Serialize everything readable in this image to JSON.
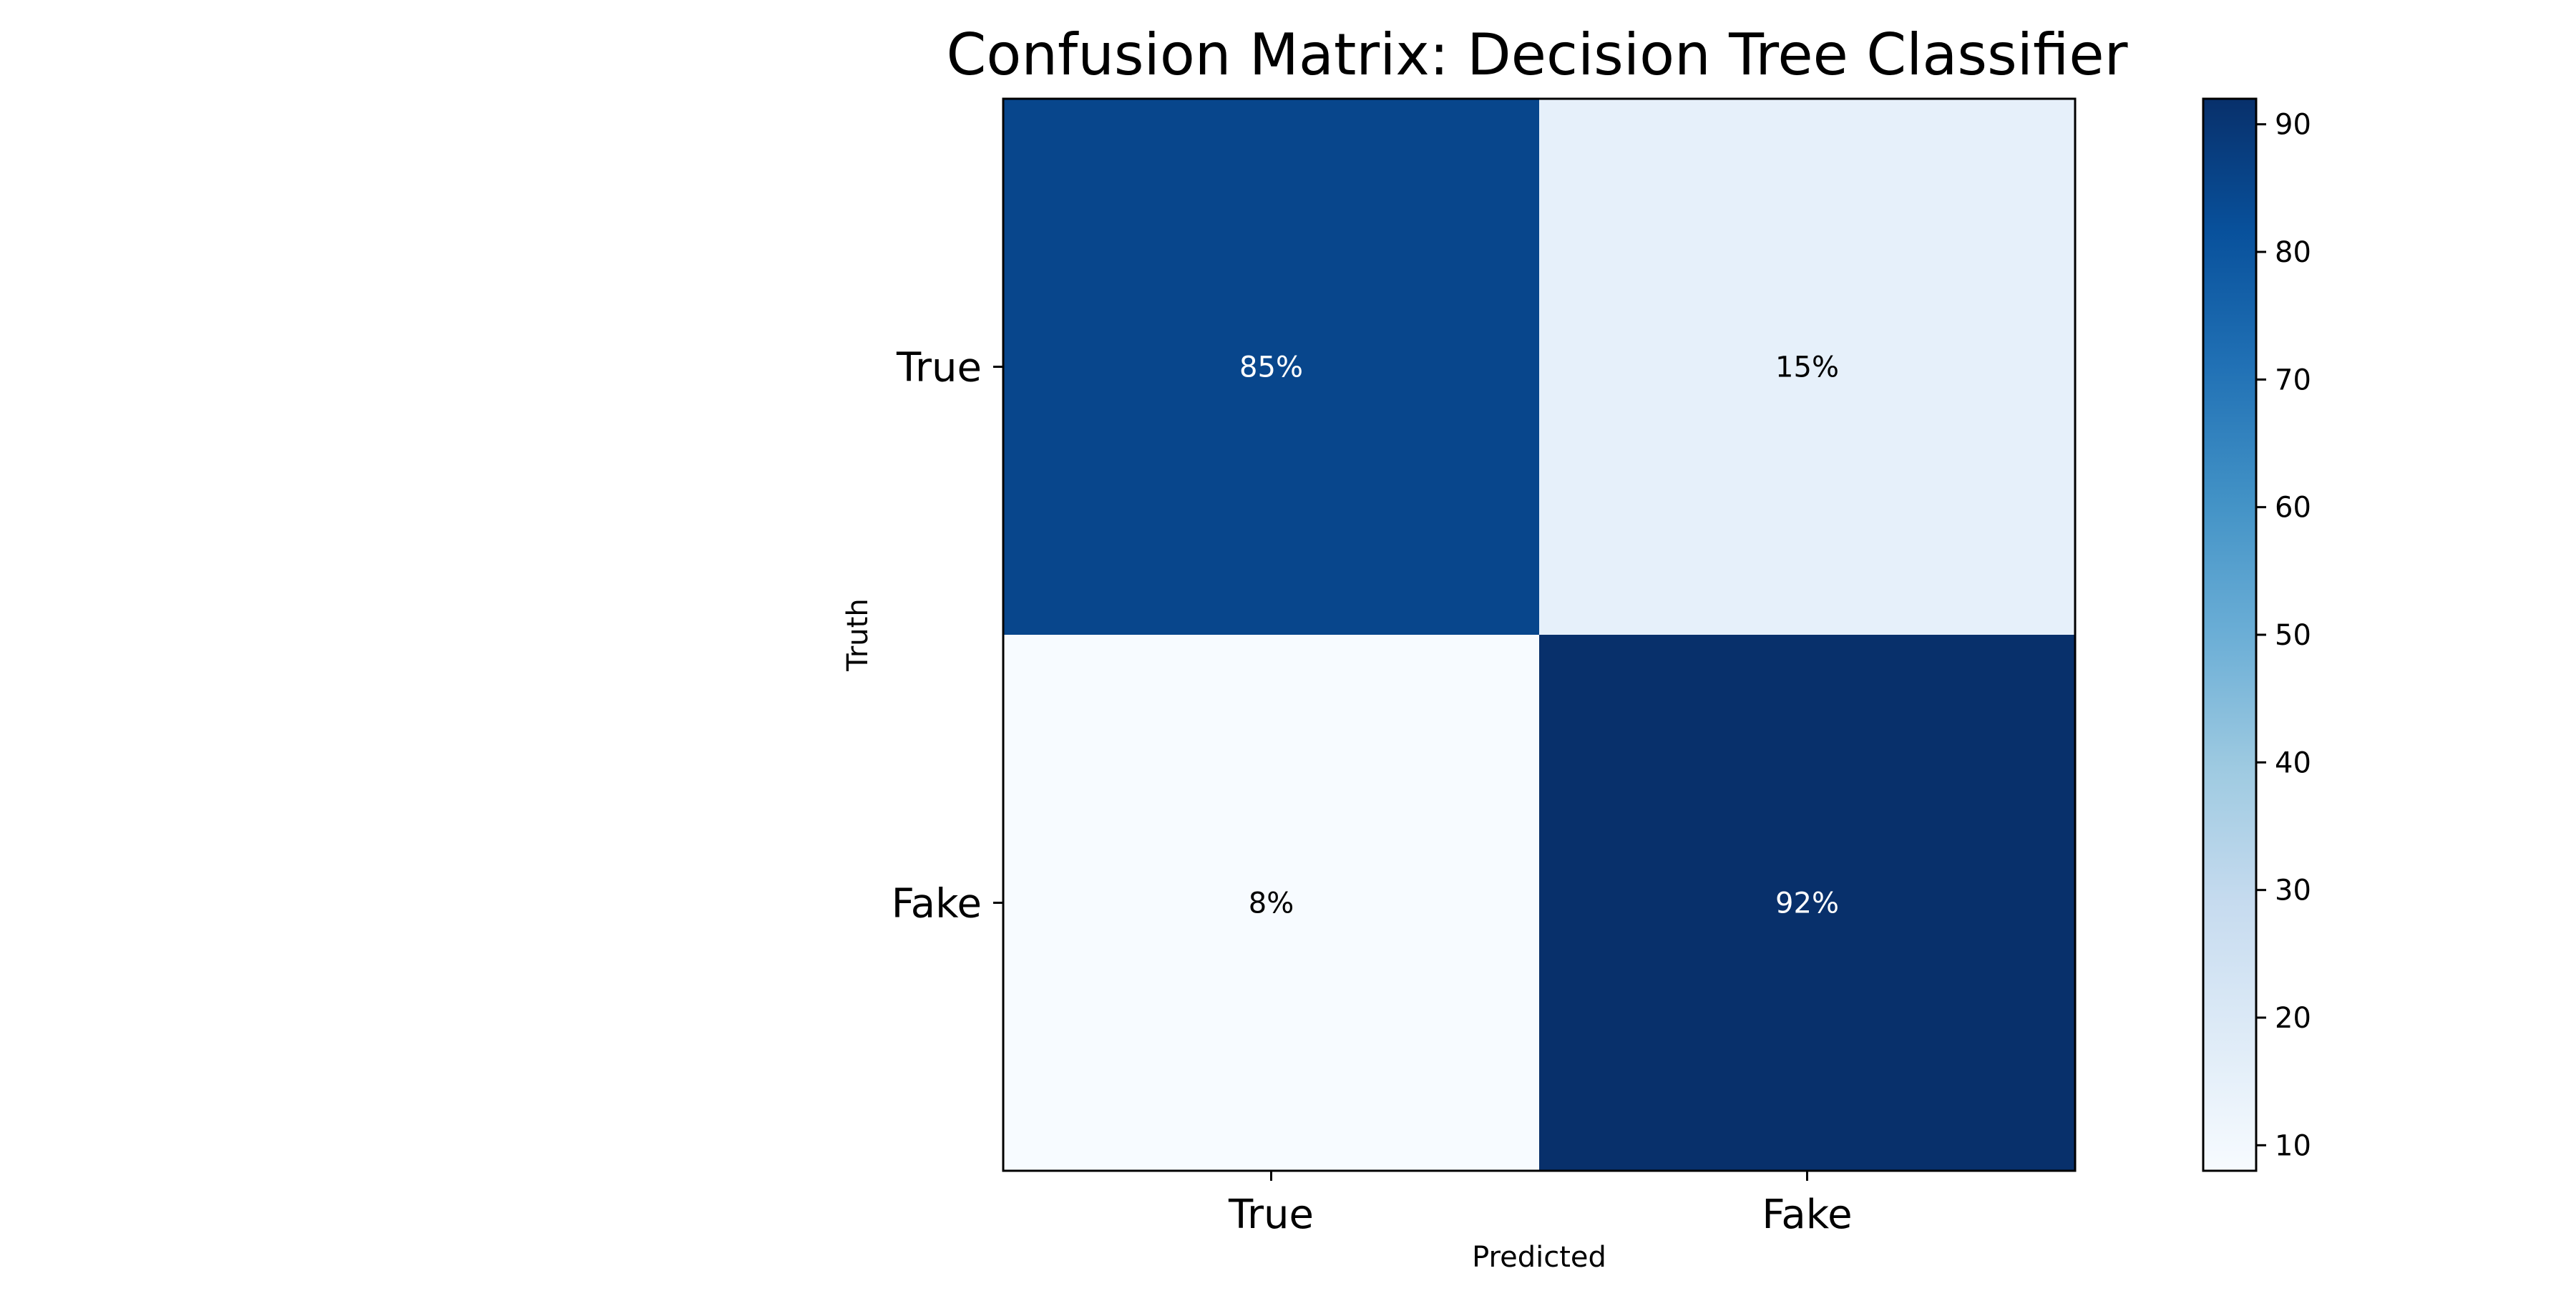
{
  "chart_data": {
    "type": "heatmap",
    "title": "Confusion Matrix: Decision Tree Classifier",
    "xlabel": "Predicted",
    "ylabel": "Truth",
    "x_categories": [
      "True",
      "Fake"
    ],
    "y_categories": [
      "True",
      "Fake"
    ],
    "values": [
      [
        85,
        15
      ],
      [
        8,
        92
      ]
    ],
    "cell_labels": [
      [
        "85%",
        "15%"
      ],
      [
        "8%",
        "92%"
      ]
    ],
    "colormap": "Blues",
    "colorbar": {
      "range": [
        8,
        92
      ],
      "ticks": [
        10,
        20,
        30,
        40,
        50,
        60,
        70,
        80,
        90
      ],
      "tick_labels": [
        "10",
        "20",
        "30",
        "40",
        "50",
        "60",
        "70",
        "80",
        "90"
      ]
    },
    "grid": false
  }
}
